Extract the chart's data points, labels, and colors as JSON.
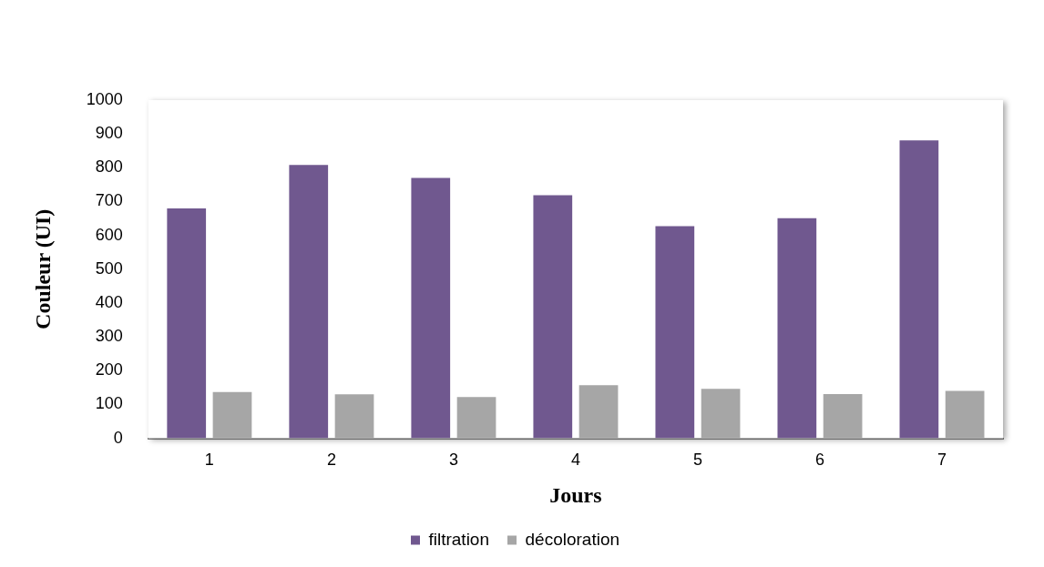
{
  "chart_data": {
    "type": "bar",
    "xlabel": "Jours",
    "ylabel": "Couleur (UI)",
    "categories": [
      "1",
      "2",
      "3",
      "4",
      "5",
      "6",
      "7"
    ],
    "series": [
      {
        "name": "filtration",
        "color": "#70588f",
        "values": [
          680,
          808,
          770,
          719,
          627,
          651,
          881
        ]
      },
      {
        "name": "décoloration",
        "color": "#a6a6a6",
        "values": [
          137,
          130,
          122,
          157,
          146,
          131,
          140
        ]
      }
    ],
    "ylim": [
      0,
      1000
    ],
    "yticks": [
      0,
      100,
      200,
      300,
      400,
      500,
      600,
      700,
      800,
      900,
      1000
    ],
    "grid": false,
    "legend": "bottom"
  }
}
